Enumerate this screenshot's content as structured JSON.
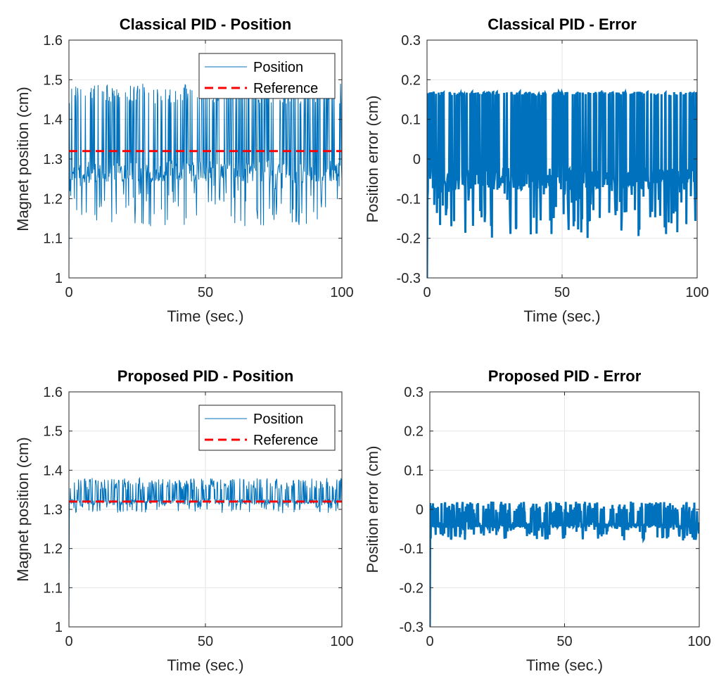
{
  "chart_data": [
    {
      "type": "line",
      "title": "Classical PID - Position",
      "xlabel": "Time (sec.)",
      "ylabel": "Magnet position (cm)",
      "xlim": [
        0,
        100
      ],
      "ylim": [
        1.0,
        1.6
      ],
      "xticks": [
        "0",
        "50",
        "100"
      ],
      "yticks": [
        "1",
        "1.1",
        "1.2",
        "1.3",
        "1.4",
        "1.5",
        "1.6"
      ],
      "grid": true,
      "legend": "top-right",
      "line_width": "thin",
      "reference": 1.32,
      "start_value": 1.0,
      "signal": {
        "t_start": 0,
        "t_end": 100,
        "samples": 600,
        "center": 1.27,
        "low_min": 1.13,
        "high_max": 1.49,
        "burst_level": 1.44
      },
      "series": [
        {
          "name": "Position",
          "color": "#0072BD",
          "style": "solid"
        },
        {
          "name": "Reference",
          "color": "#FF0000",
          "style": "dashed",
          "values": [
            1.32,
            1.32
          ]
        }
      ]
    },
    {
      "type": "line",
      "title": "Classical PID - Error",
      "xlabel": "Time (sec.)",
      "ylabel": "Position error (cm)",
      "xlim": [
        0,
        100
      ],
      "ylim": [
        -0.3,
        0.3
      ],
      "xticks": [
        "0",
        "50",
        "100"
      ],
      "yticks": [
        "-0.3",
        "-0.2",
        "-0.1",
        "0",
        "0.1",
        "0.2",
        "0.3"
      ],
      "grid": true,
      "line_width": "thick",
      "start_value": -0.3,
      "signal": {
        "t_start": 0,
        "t_end": 100,
        "samples": 600,
        "center": -0.05,
        "low_min": -0.2,
        "high_max": 0.17,
        "burst_level": 0.16
      },
      "series": [
        {
          "name": "Error",
          "color": "#0072BD",
          "style": "solid"
        }
      ]
    },
    {
      "type": "line",
      "title": "Proposed PID - Position",
      "xlabel": "Time (sec.)",
      "ylabel": "Magnet position (cm)",
      "xlim": [
        0,
        100
      ],
      "ylim": [
        1.0,
        1.6
      ],
      "xticks": [
        "0",
        "50",
        "100"
      ],
      "yticks": [
        "1",
        "1.1",
        "1.2",
        "1.3",
        "1.4",
        "1.5",
        "1.6"
      ],
      "grid": true,
      "legend": "top-right",
      "line_width": "thin",
      "reference": 1.32,
      "start_value": 1.0,
      "signal": {
        "t_start": 0,
        "t_end": 100,
        "samples": 600,
        "center": 1.32,
        "low_min": 1.29,
        "high_max": 1.38,
        "burst_level": 1.35
      },
      "series": [
        {
          "name": "Position",
          "color": "#0072BD",
          "style": "solid"
        },
        {
          "name": "Reference",
          "color": "#FF0000",
          "style": "dashed",
          "values": [
            1.32,
            1.32
          ]
        }
      ]
    },
    {
      "type": "line",
      "title": "Proposed PID - Error",
      "xlabel": "Time (sec.)",
      "ylabel": "Position error (cm)",
      "xlim": [
        0,
        100
      ],
      "ylim": [
        -0.3,
        0.3
      ],
      "xticks": [
        "0",
        "50",
        "100"
      ],
      "yticks": [
        "-0.3",
        "-0.2",
        "-0.1",
        "0",
        "0.1",
        "0.2",
        "0.3"
      ],
      "grid": true,
      "line_width": "thick",
      "start_value": -0.3,
      "signal": {
        "t_start": 0,
        "t_end": 100,
        "samples": 600,
        "center": -0.04,
        "low_min": -0.08,
        "high_max": 0.02,
        "burst_level": -0.01
      },
      "series": [
        {
          "name": "Error",
          "color": "#0072BD",
          "style": "solid"
        }
      ]
    }
  ]
}
